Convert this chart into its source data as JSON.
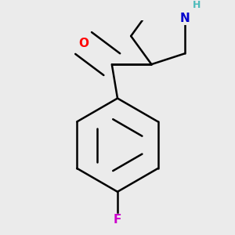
{
  "background_color": "#ebebeb",
  "bond_color": "#000000",
  "bond_width": 1.8,
  "dbo": 0.012,
  "atom_colors": {
    "O": "#ff0000",
    "N": "#0000cd",
    "F": "#cc00cc",
    "H": "#4dbbbb"
  },
  "font_size_atom": 11,
  "font_size_H": 9
}
